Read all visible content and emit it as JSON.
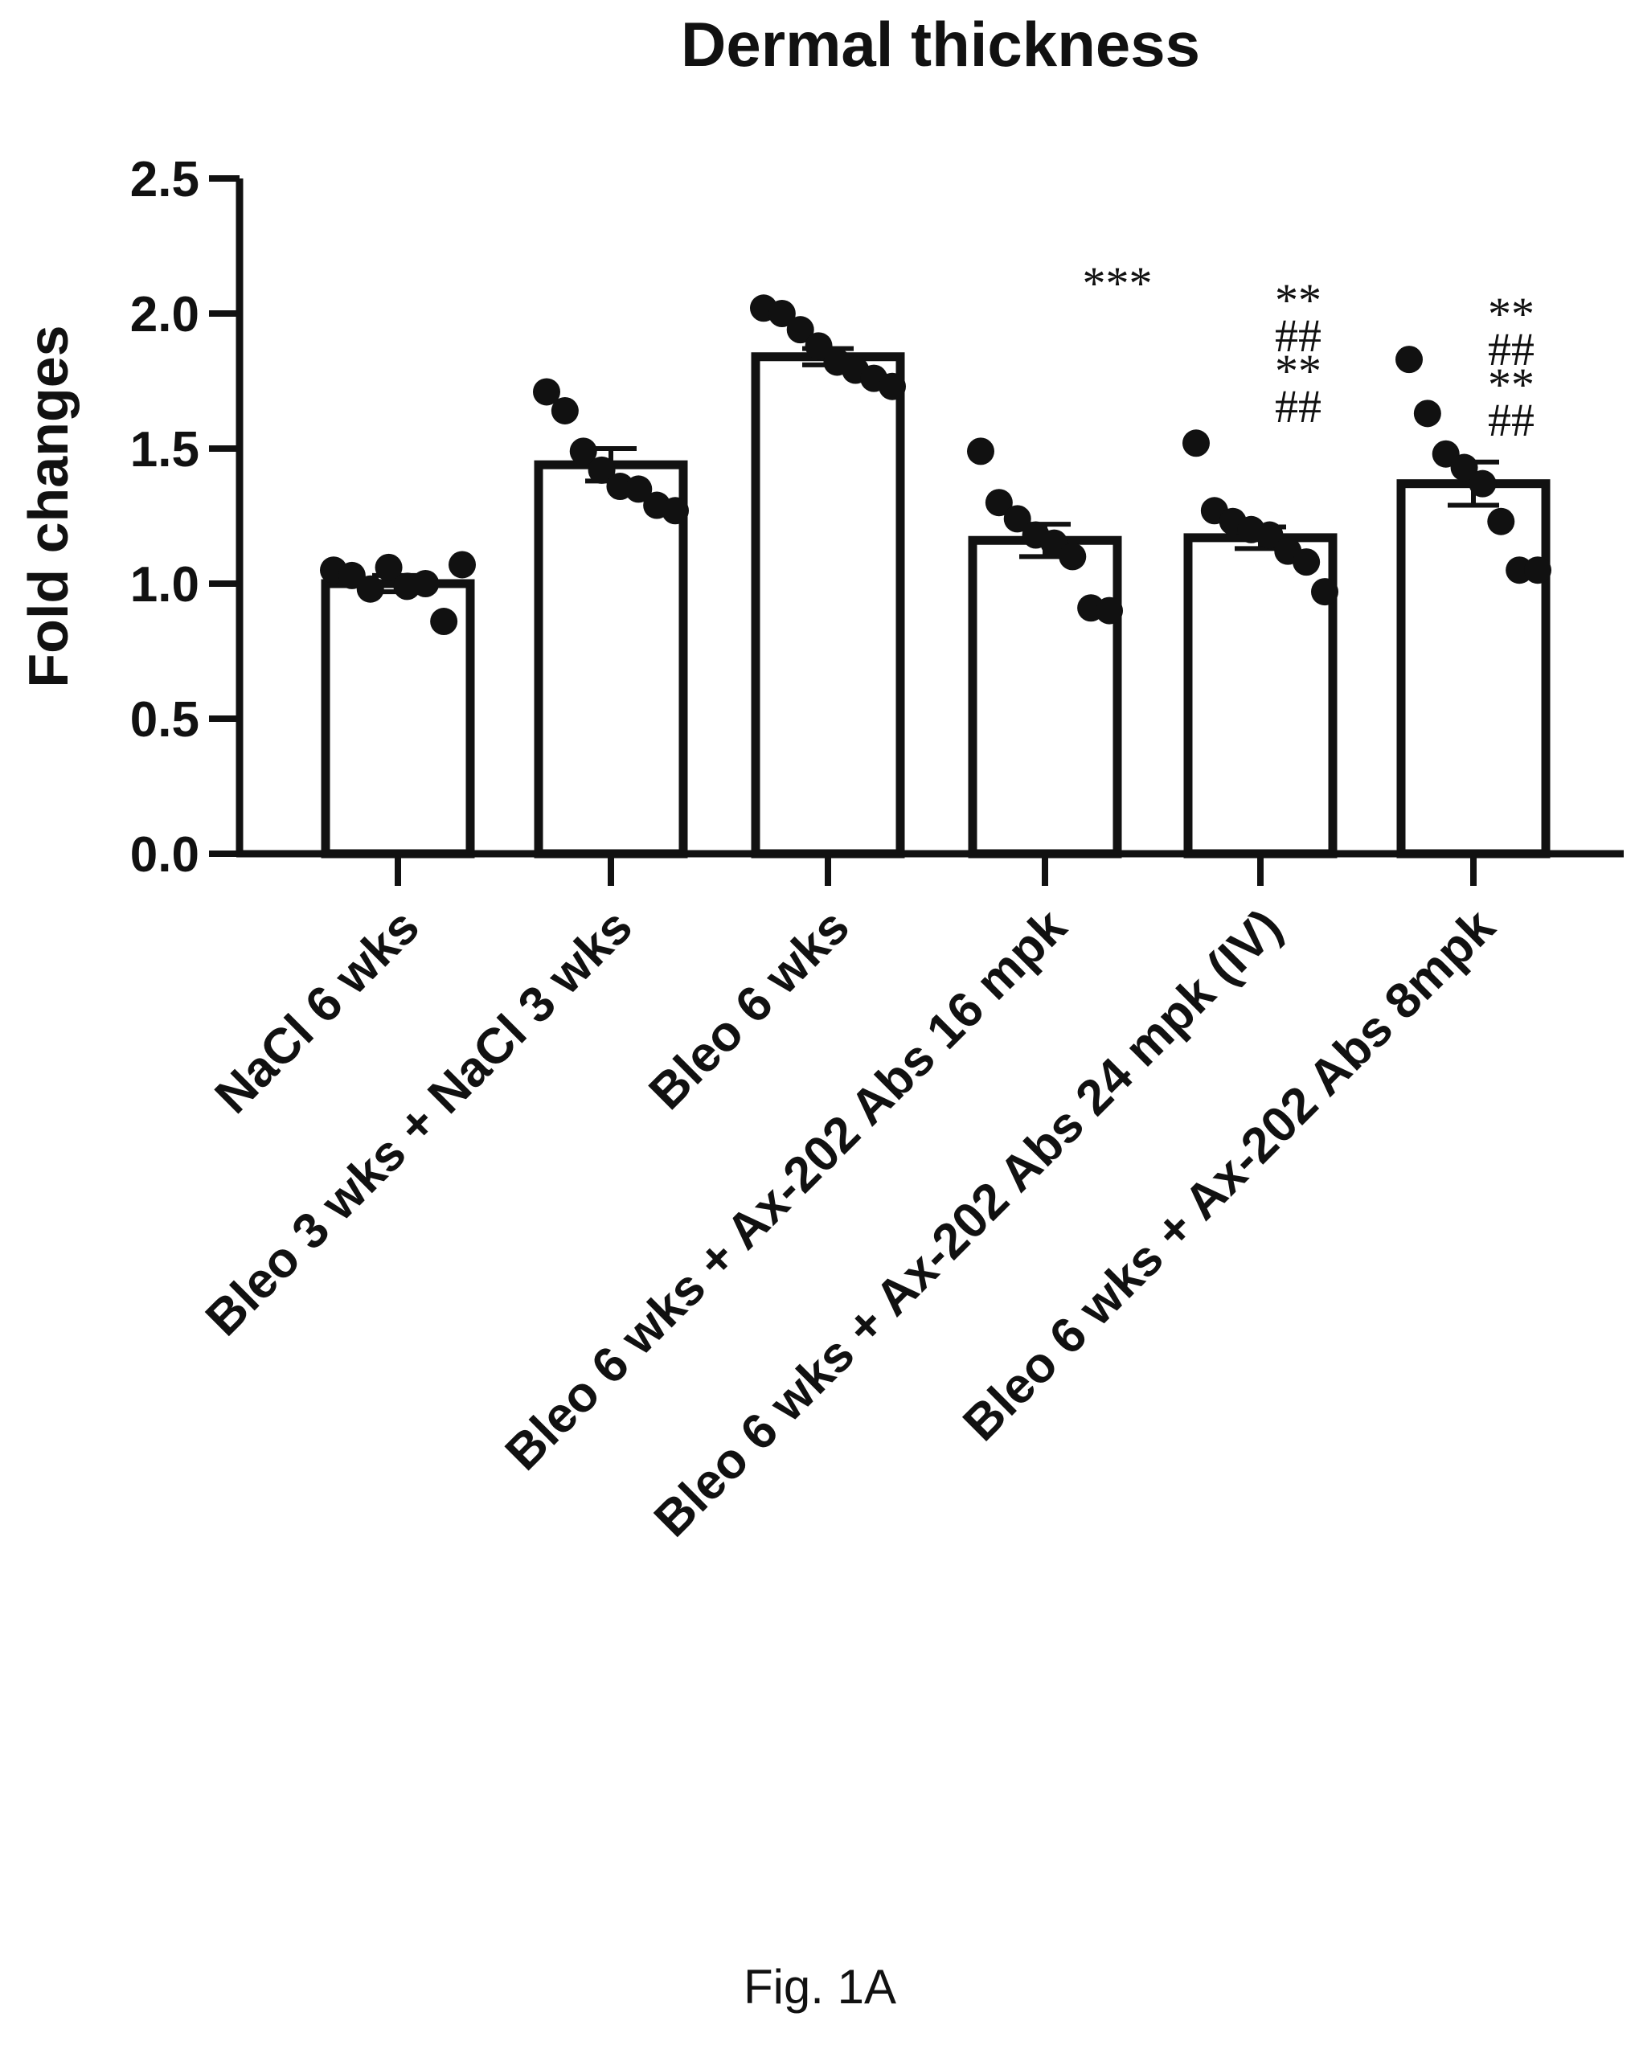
{
  "figure": {
    "caption": "Fig. 1A"
  },
  "chart_data": {
    "type": "bar",
    "title": "Dermal thickness",
    "xlabel": "",
    "ylabel": "Fold changes",
    "ylim": [
      0,
      2.5
    ],
    "yticks": [
      "0.0",
      "0.5",
      "1.0",
      "1.5",
      "2.0",
      "2.5"
    ],
    "categories": [
      "NaCl 6 wks",
      "Bleo 3 wks + NaCl 3 wks",
      "Bleo 6 wks",
      "Bleo 6 wks + Ax-202 Abs 16 mpk",
      "Bleo 6 wks + Ax-202 Abs 24 mpk (IV)",
      "Bleo 6 wks + Ax-202 Abs 8mpk"
    ],
    "values": [
      1.0,
      1.44,
      1.84,
      1.16,
      1.17,
      1.37
    ],
    "errors": [
      0.03,
      0.06,
      0.03,
      0.06,
      0.04,
      0.08
    ],
    "points": [
      [
        1.05,
        1.03,
        0.98,
        1.06,
        0.99,
        1.0,
        0.86,
        1.07
      ],
      [
        1.71,
        1.64,
        1.49,
        1.42,
        1.36,
        1.35,
        1.29,
        1.27
      ],
      [
        2.02,
        2.0,
        1.94,
        1.88,
        1.82,
        1.79,
        1.76,
        1.73
      ],
      [
        1.49,
        1.3,
        1.24,
        1.18,
        1.15,
        1.1,
        0.91,
        0.9
      ],
      [
        1.52,
        1.27,
        1.23,
        1.2,
        1.18,
        1.12,
        1.08,
        0.97
      ],
      [
        1.83,
        1.63,
        1.48,
        1.43,
        1.37,
        1.23,
        1.05,
        1.05
      ]
    ],
    "annotations": [
      {
        "category": 3,
        "text": "***"
      },
      {
        "category": 4,
        "text": "**"
      },
      {
        "category": 4,
        "text": "##"
      },
      {
        "category": 4,
        "text": "**"
      },
      {
        "category": 4,
        "text": "##"
      },
      {
        "category": 5,
        "text": "**"
      },
      {
        "category": 5,
        "text": "##"
      },
      {
        "category": 5,
        "text": "**"
      },
      {
        "category": 5,
        "text": "##"
      }
    ],
    "grid": false,
    "legend": "none"
  }
}
